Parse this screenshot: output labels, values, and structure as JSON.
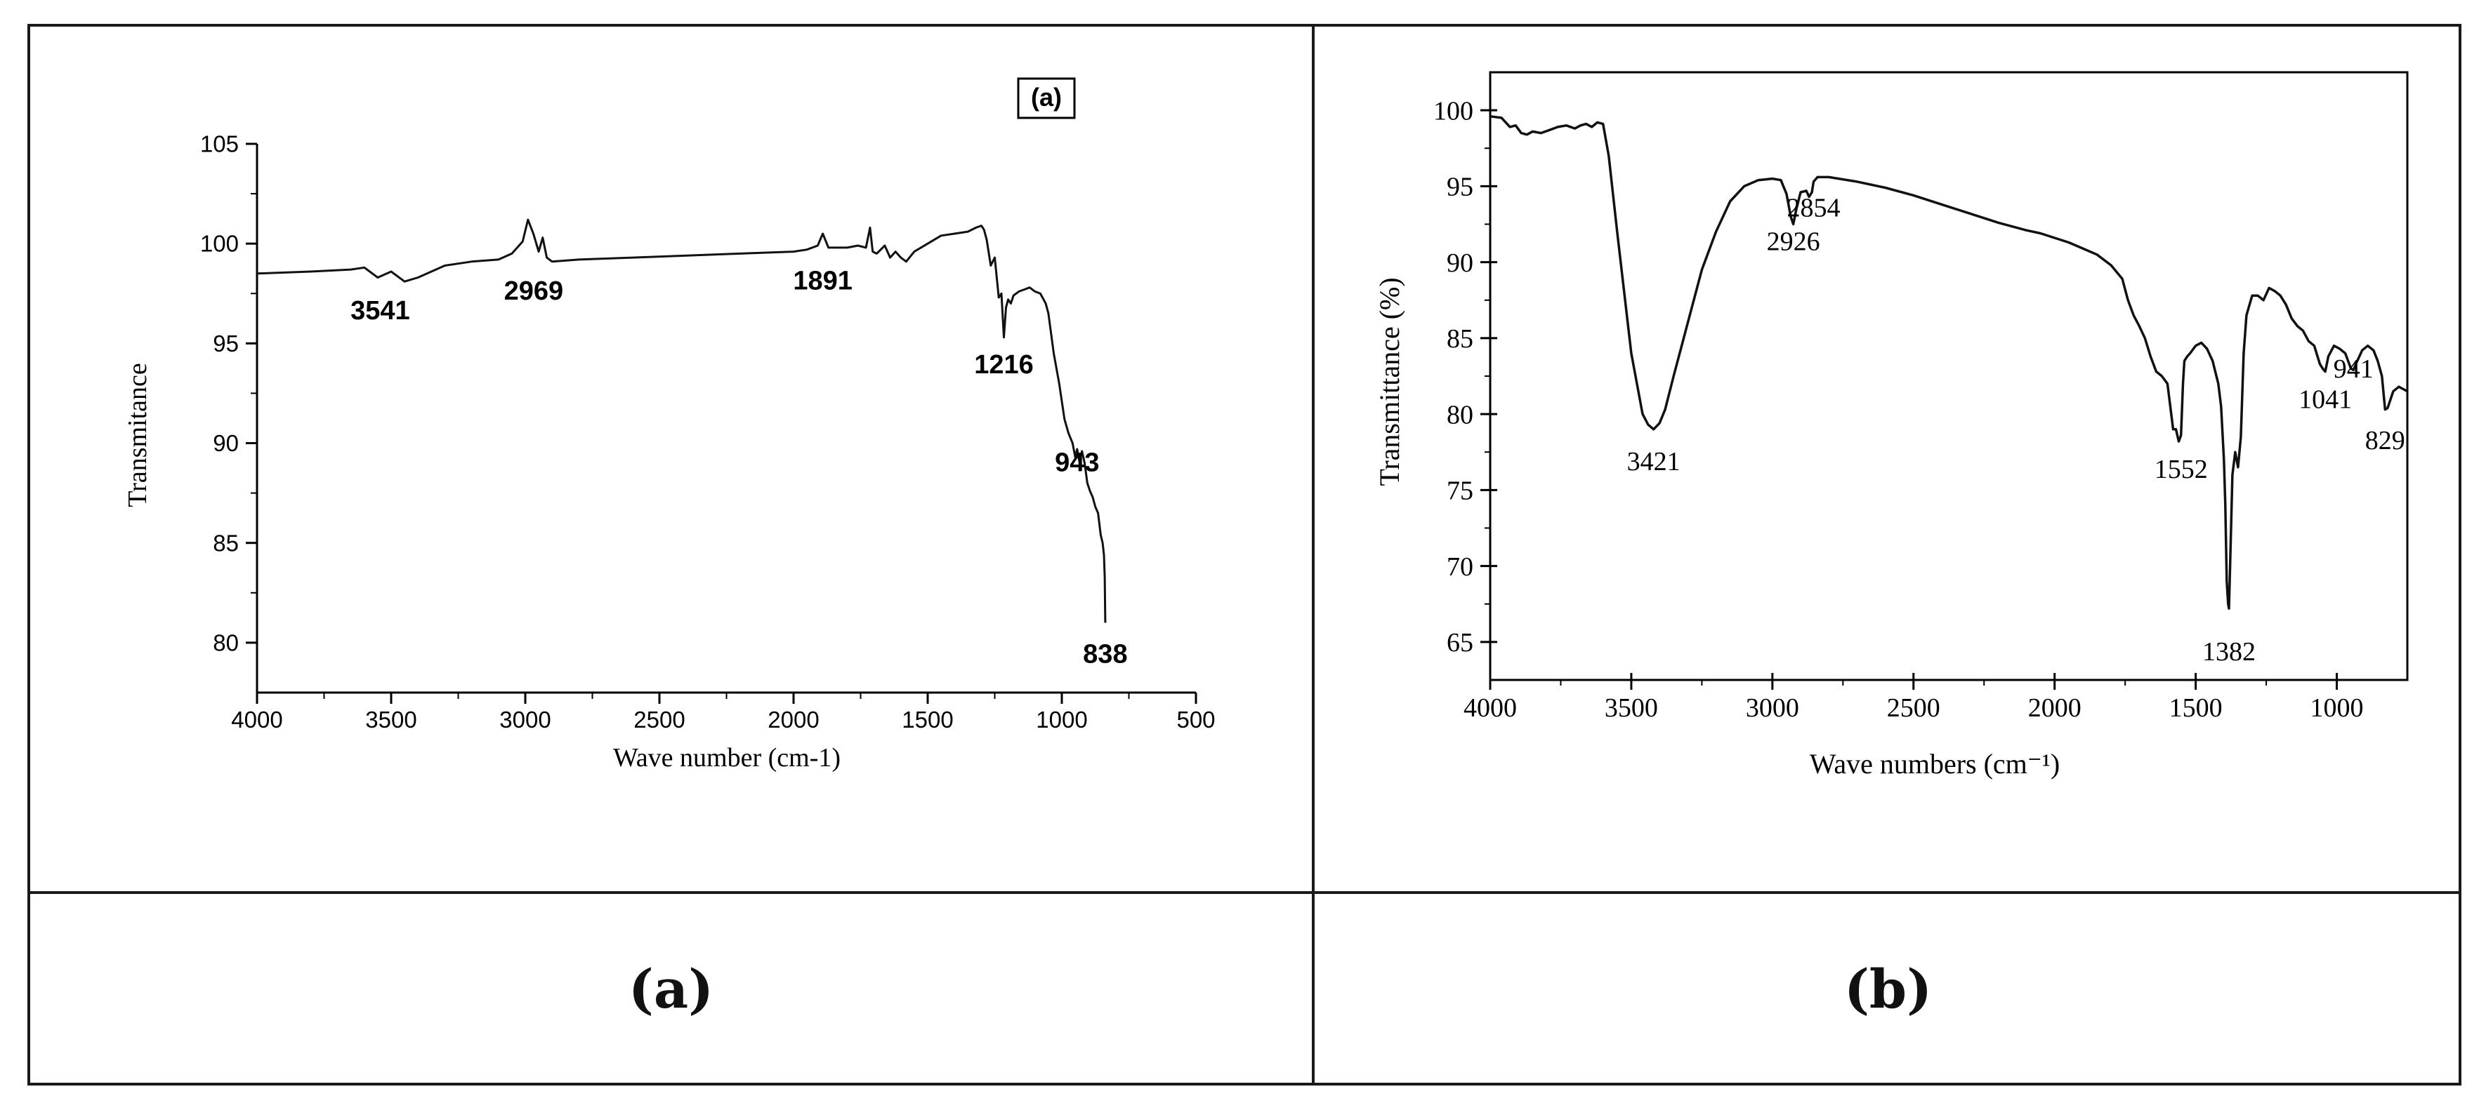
{
  "captions": {
    "a": "(a)",
    "b": "(b)"
  },
  "chart_data": [
    {
      "type": "line",
      "panel_label": "(a)",
      "xlabel": "Wave number (cm-1)",
      "ylabel": "Transmitance",
      "xlim": [
        4000,
        500
      ],
      "ylim": [
        77.5,
        105
      ],
      "xticks": [
        4000,
        3500,
        3000,
        2500,
        2000,
        1500,
        1000,
        500
      ],
      "yticks": [
        80,
        85,
        90,
        95,
        100,
        105
      ],
      "x_reversed": true,
      "series": [
        {
          "x": [
            4000,
            3800,
            3650,
            3600,
            3550,
            3500,
            3450,
            3400,
            3300,
            3200,
            3100,
            3050,
            3010,
            2990,
            2970,
            2950,
            2935,
            2920,
            2900,
            2800,
            2600,
            2400,
            2200,
            2000,
            1950,
            1910,
            1891,
            1870,
            1840,
            1800,
            1760,
            1730,
            1715,
            1705,
            1690,
            1660,
            1640,
            1620,
            1600,
            1580,
            1550,
            1500,
            1450,
            1400,
            1350,
            1320,
            1300,
            1290,
            1280,
            1265,
            1250,
            1235,
            1225,
            1216,
            1208,
            1200,
            1190,
            1180,
            1160,
            1140,
            1120,
            1100,
            1080,
            1060,
            1050,
            1030,
            1010,
            990,
            975,
            960,
            950,
            943,
            935,
            925,
            915,
            905,
            895,
            885,
            875,
            865,
            855,
            848,
            843,
            840,
            838
          ],
          "y": [
            98.5,
            98.6,
            98.7,
            98.8,
            98.3,
            98.6,
            98.1,
            98.3,
            98.9,
            99.1,
            99.2,
            99.5,
            100.1,
            101.2,
            100.5,
            99.6,
            100.3,
            99.3,
            99.1,
            99.2,
            99.3,
            99.4,
            99.5,
            99.6,
            99.7,
            99.9,
            100.5,
            99.8,
            99.8,
            99.8,
            99.9,
            99.8,
            100.8,
            99.6,
            99.5,
            99.9,
            99.3,
            99.6,
            99.3,
            99.1,
            99.6,
            100.0,
            100.4,
            100.5,
            100.6,
            100.8,
            100.9,
            100.7,
            100.2,
            98.9,
            99.3,
            97.3,
            97.5,
            95.3,
            96.8,
            97.2,
            97.0,
            97.4,
            97.6,
            97.7,
            97.8,
            97.6,
            97.5,
            97.0,
            96.5,
            94.5,
            93.0,
            91.2,
            90.5,
            90.0,
            89.3,
            89.7,
            89.1,
            89.6,
            89.0,
            88.0,
            87.6,
            87.3,
            86.8,
            86.5,
            85.4,
            85.0,
            84.4,
            83.3,
            81.0
          ]
        }
      ],
      "annotations": [
        {
          "text": "3541",
          "x": 3541,
          "y": 96.2
        },
        {
          "text": "2969",
          "x": 2969,
          "y": 97.2
        },
        {
          "text": "1891",
          "x": 1891,
          "y": 97.7
        },
        {
          "text": "1216",
          "x": 1216,
          "y": 93.5
        },
        {
          "text": "943",
          "x": 943,
          "y": 88.6
        },
        {
          "text": "838",
          "x": 838,
          "y": 79.0
        }
      ]
    },
    {
      "type": "line",
      "xlabel": "Wave numbers (cm⁻¹)",
      "ylabel": "Transmittance (%)",
      "xlim": [
        4000,
        750
      ],
      "ylim": [
        62.5,
        102.5
      ],
      "xticks": [
        4000,
        3500,
        3000,
        2500,
        2000,
        1500,
        1000
      ],
      "yticks": [
        65,
        70,
        75,
        80,
        85,
        90,
        95,
        100
      ],
      "x_reversed": true,
      "series": [
        {
          "x": [
            4000,
            3960,
            3930,
            3910,
            3890,
            3870,
            3850,
            3820,
            3790,
            3760,
            3730,
            3700,
            3680,
            3660,
            3640,
            3620,
            3600,
            3580,
            3550,
            3500,
            3460,
            3440,
            3421,
            3400,
            3380,
            3350,
            3300,
            3250,
            3200,
            3150,
            3100,
            3050,
            3000,
            2970,
            2950,
            2935,
            2926,
            2915,
            2900,
            2880,
            2870,
            2860,
            2854,
            2840,
            2800,
            2700,
            2600,
            2500,
            2400,
            2300,
            2200,
            2100,
            2050,
            2000,
            1950,
            1900,
            1850,
            1800,
            1760,
            1740,
            1720,
            1700,
            1680,
            1660,
            1640,
            1620,
            1600,
            1580,
            1570,
            1560,
            1552,
            1545,
            1540,
            1530,
            1520,
            1500,
            1480,
            1460,
            1440,
            1420,
            1410,
            1400,
            1395,
            1390,
            1385,
            1382,
            1378,
            1370,
            1360,
            1350,
            1340,
            1330,
            1320,
            1300,
            1280,
            1260,
            1240,
            1220,
            1200,
            1180,
            1160,
            1140,
            1120,
            1100,
            1080,
            1060,
            1050,
            1041,
            1030,
            1010,
            990,
            970,
            960,
            950,
            941,
            930,
            910,
            890,
            870,
            855,
            840,
            829,
            820,
            800,
            780,
            760,
            750
          ],
          "y": [
            99.6,
            99.5,
            98.9,
            99.0,
            98.5,
            98.4,
            98.6,
            98.5,
            98.7,
            98.9,
            99.0,
            98.8,
            99.0,
            99.1,
            98.9,
            99.2,
            99.1,
            97.0,
            92.0,
            84.0,
            80.0,
            79.3,
            79.0,
            79.4,
            80.3,
            82.5,
            86.0,
            89.5,
            92.0,
            94.0,
            95.0,
            95.4,
            95.5,
            95.4,
            94.5,
            93.0,
            92.5,
            93.5,
            94.6,
            94.7,
            94.3,
            94.6,
            95.3,
            95.6,
            95.6,
            95.3,
            94.9,
            94.4,
            93.8,
            93.2,
            92.6,
            92.1,
            91.9,
            91.6,
            91.3,
            90.9,
            90.5,
            89.8,
            88.9,
            87.5,
            86.5,
            85.8,
            85.0,
            83.8,
            82.8,
            82.5,
            82.0,
            79.0,
            79.0,
            78.2,
            78.6,
            82.0,
            83.5,
            83.8,
            84.0,
            84.5,
            84.7,
            84.3,
            83.5,
            82.0,
            80.5,
            77.0,
            74.0,
            69.0,
            67.5,
            67.2,
            70.0,
            76.0,
            77.5,
            76.5,
            78.5,
            84.0,
            86.5,
            87.8,
            87.8,
            87.5,
            88.3,
            88.1,
            87.8,
            87.2,
            86.3,
            85.8,
            85.5,
            84.8,
            84.5,
            83.3,
            83.0,
            82.8,
            83.8,
            84.5,
            84.3,
            84.0,
            83.5,
            83.0,
            82.9,
            83.4,
            84.2,
            84.5,
            84.2,
            83.5,
            82.5,
            80.3,
            80.4,
            81.5,
            81.8,
            81.6,
            81.5
          ]
        }
      ],
      "annotations": [
        {
          "text": "3421",
          "x": 3421,
          "y": 76.3
        },
        {
          "text": "2926",
          "x": 2926,
          "y": 90.8
        },
        {
          "text": "2854",
          "x": 2854,
          "y": 93.0
        },
        {
          "text": "1552",
          "x": 1552,
          "y": 75.8
        },
        {
          "text": "1382",
          "x": 1382,
          "y": 63.8
        },
        {
          "text": "1041",
          "x": 1041,
          "y": 80.4
        },
        {
          "text": "941",
          "x": 941,
          "y": 82.4
        },
        {
          "text": "829",
          "x": 829,
          "y": 77.7
        }
      ]
    }
  ]
}
